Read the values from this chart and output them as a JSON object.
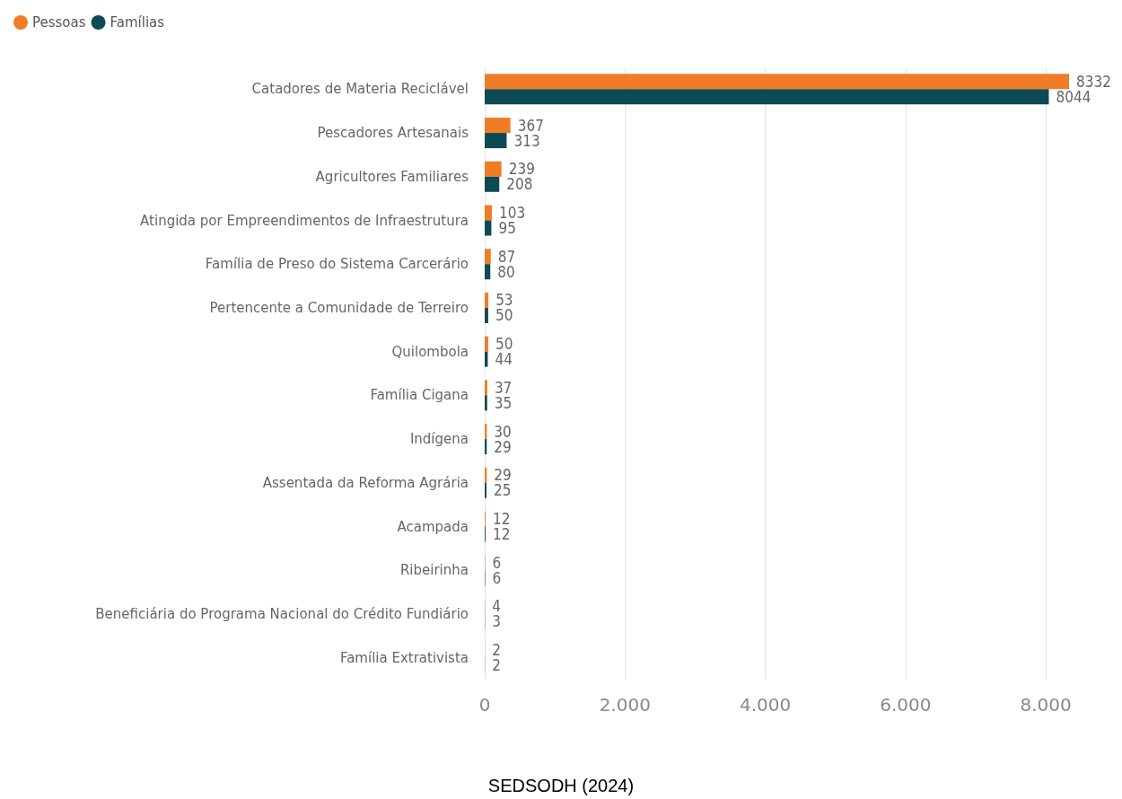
{
  "chart_data": {
    "type": "bar",
    "orientation": "horizontal",
    "categories": [
      "Catadores de Materia Reciclável",
      "Pescadores Artesanais",
      "Agricultores Familiares",
      "Atingida por Empreendimentos de Infraestrutura",
      "Família de Preso do Sistema Carcerário",
      "Pertencente a Comunidade de Terreiro",
      "Quilombola",
      "Família Cigana",
      "Indígena",
      "Assentada da Reforma Agrária",
      "Acampada",
      "Ribeirinha",
      "Beneficiária do Programa Nacional do Crédito Fundiário",
      "Família Extrativista"
    ],
    "series": [
      {
        "name": "Pessoas",
        "color": "#f07d26",
        "values": [
          8332,
          367,
          239,
          103,
          87,
          53,
          50,
          37,
          30,
          29,
          12,
          6,
          4,
          2
        ]
      },
      {
        "name": "Famílias",
        "color": "#0e4a54",
        "values": [
          8044,
          313,
          208,
          95,
          80,
          50,
          44,
          35,
          29,
          25,
          12,
          6,
          3,
          2
        ]
      }
    ],
    "xlim": [
      0,
      8332
    ],
    "xticks": [
      0,
      {
        "value": 2000,
        "label": "2.000"
      },
      {
        "value": 4000,
        "label": "4.000"
      },
      {
        "value": 6000,
        "label": "6.000"
      },
      {
        "value": 8000,
        "label": "8.000"
      }
    ],
    "grid": "x",
    "legend": "top left",
    "data_labels": true,
    "annotations": [
      "SEDSODH (2024)"
    ]
  }
}
